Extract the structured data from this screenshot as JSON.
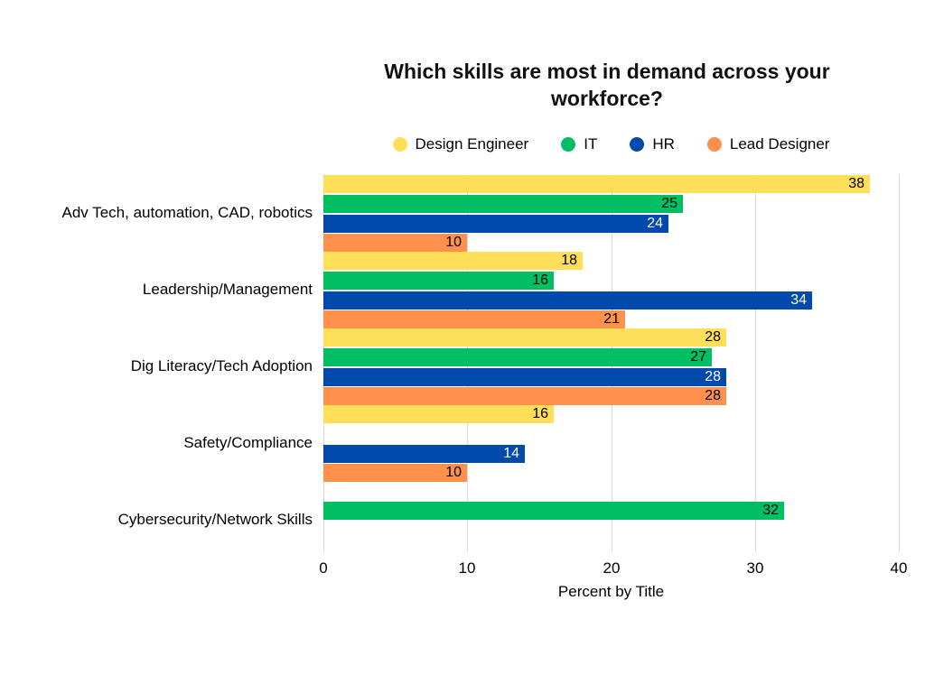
{
  "page": {
    "background_color": "#ffffff"
  },
  "chart_data": {
    "type": "bar",
    "orientation": "horizontal",
    "title": "Which skills are most in demand across your workforce?",
    "xlabel": "Percent by Title",
    "categories": [
      "Adv Tech, automation, CAD, robotics",
      "Leadership/Management",
      "Dig Literacy/Tech Adoption",
      "Safety/Compliance",
      "Cybersecurity/Network Skills"
    ],
    "series": [
      {
        "name": "Design Engineer",
        "color": "#FFDE59",
        "label_color": "#000000",
        "values": [
          38,
          18,
          28,
          16,
          null
        ]
      },
      {
        "name": "IT",
        "color": "#00BF63",
        "label_color": "#000000",
        "values": [
          25,
          16,
          27,
          null,
          32
        ]
      },
      {
        "name": "HR",
        "color": "#004AAD",
        "label_color": "#FFFFFF",
        "values": [
          24,
          34,
          28,
          14,
          null
        ]
      },
      {
        "name": "Lead Designer",
        "color": "#FF914D",
        "label_color": "#000000",
        "values": [
          10,
          21,
          28,
          10,
          null
        ]
      }
    ],
    "xlim": [
      0,
      40
    ],
    "xticks": [
      0,
      10,
      20,
      30,
      40
    ],
    "grid": "vertical",
    "gridline_color": "#D9D9D9",
    "legend_position": "top",
    "text_color": "#000000"
  }
}
